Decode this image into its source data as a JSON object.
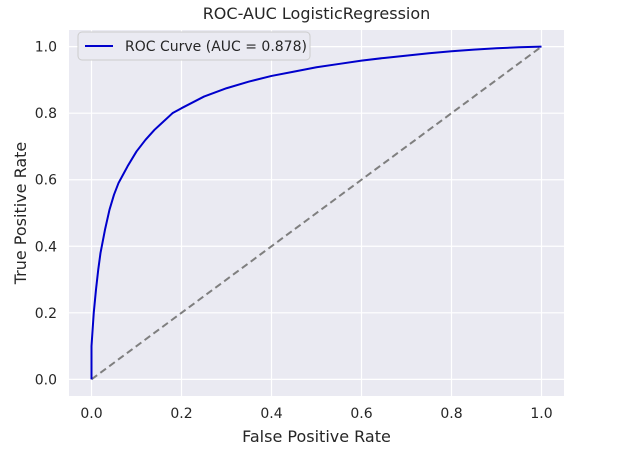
{
  "chart_data": {
    "type": "line",
    "title": "ROC-AUC LogisticRegression",
    "xlabel": "False Positive Rate",
    "ylabel": "True Positive Rate",
    "xlim": [
      -0.05,
      1.05
    ],
    "ylim": [
      -0.05,
      1.05
    ],
    "xticks": [
      "0.0",
      "0.2",
      "0.4",
      "0.6",
      "0.8",
      "1.0"
    ],
    "yticks": [
      "0.0",
      "0.2",
      "0.4",
      "0.6",
      "0.8",
      "1.0"
    ],
    "grid": true,
    "legend_position": "upper-left",
    "series": [
      {
        "name": "ROC Curve (AUC = 0.878)",
        "color": "#0000cc",
        "style": "solid",
        "x": [
          0.0,
          0.0,
          0.005,
          0.01,
          0.015,
          0.02,
          0.03,
          0.04,
          0.05,
          0.06,
          0.07,
          0.08,
          0.1,
          0.12,
          0.14,
          0.16,
          0.18,
          0.2,
          0.25,
          0.3,
          0.35,
          0.4,
          0.45,
          0.5,
          0.55,
          0.6,
          0.65,
          0.7,
          0.75,
          0.8,
          0.85,
          0.9,
          0.95,
          1.0
        ],
        "y": [
          0.0,
          0.1,
          0.2,
          0.27,
          0.33,
          0.38,
          0.45,
          0.51,
          0.555,
          0.59,
          0.615,
          0.64,
          0.685,
          0.72,
          0.75,
          0.775,
          0.8,
          0.815,
          0.85,
          0.875,
          0.895,
          0.912,
          0.925,
          0.938,
          0.948,
          0.958,
          0.966,
          0.973,
          0.98,
          0.986,
          0.991,
          0.995,
          0.998,
          1.0
        ]
      },
      {
        "name": "",
        "color": "#7f7f7f",
        "style": "dashed",
        "x": [
          0.0,
          1.0
        ],
        "y": [
          0.0,
          1.0
        ]
      }
    ],
    "colors": {
      "plot_background": "#eaeaf2",
      "grid": "#ffffff"
    }
  }
}
